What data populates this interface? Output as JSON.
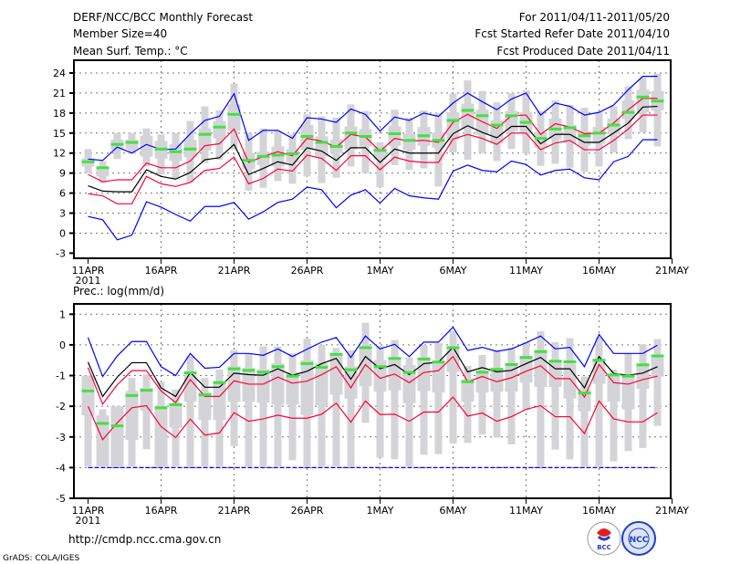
{
  "header": {
    "title": "DERF/NCC/BCC Monthly Forecast",
    "member_size": "Member Size=40",
    "variable": "Mean Surf. Temp.: °C",
    "period": "For 2011/04/11-2011/05/20",
    "started": "Fcst Started Refer Date 2011/04/10",
    "produced": "Fcst Produced Date 2011/04/11"
  },
  "footer": {
    "url": "http://cmdp.ncc.cma.gov.cn",
    "credit": "GrADS: COLA/IGES",
    "logo_bcc": "BCC",
    "logo_ncc": "NCC"
  },
  "colors": {
    "envelope": "#0000ff",
    "spread": "#ff0033",
    "mean": "#000000",
    "obs": "#44e044",
    "box": "#d4d4d8"
  },
  "chart_data": [
    {
      "type": "line",
      "title": "Mean Surf. Temp.: °C",
      "xlabel": "",
      "ylabel": "°C",
      "ylim": [
        -3,
        24
      ],
      "yticks": [
        -3,
        0,
        3,
        6,
        9,
        12,
        15,
        18,
        21,
        24
      ],
      "xticks": [
        {
          "day": 0,
          "label": "11APR",
          "sub": "2011"
        },
        {
          "day": 5,
          "label": "16APR"
        },
        {
          "day": 10,
          "label": "21APR"
        },
        {
          "day": 15,
          "label": "26APR"
        },
        {
          "day": 20,
          "label": "1MAY"
        },
        {
          "day": 25,
          "label": "6MAY"
        },
        {
          "day": 30,
          "label": "11MAY"
        },
        {
          "day": 35,
          "label": "16MAY"
        },
        {
          "day": 40,
          "label": "21MAY"
        }
      ],
      "grid": true,
      "series": [
        {
          "name": "max",
          "color": "#0000ff",
          "values": [
            11.1,
            10.9,
            12.9,
            12.0,
            13.3,
            12.5,
            12.6,
            14.9,
            16.9,
            17.5,
            20.9,
            13.9,
            15.4,
            15.4,
            14.2,
            17.3,
            17.1,
            16.6,
            18.6,
            17.8,
            15.3,
            17.4,
            16.9,
            18.0,
            17.5,
            19.5,
            21.0,
            19.7,
            18.5,
            20.1,
            21.0,
            17.7,
            19.5,
            19.0,
            17.7,
            18.1,
            19.2,
            21.5,
            23.5,
            23.5
          ]
        },
        {
          "name": "upper",
          "color": "#ff0033",
          "values": [
            8.8,
            7.7,
            8.0,
            8.0,
            10.5,
            9.8,
            9.8,
            10.8,
            13.1,
            13.4,
            15.6,
            10.6,
            11.5,
            12.2,
            11.6,
            14.2,
            13.8,
            12.9,
            14.8,
            14.4,
            12.3,
            14.2,
            13.8,
            13.9,
            13.6,
            16.6,
            17.8,
            16.7,
            15.7,
            17.6,
            17.7,
            14.8,
            16.4,
            15.9,
            14.9,
            15.0,
            16.5,
            18.5,
            20.2,
            20.2
          ]
        },
        {
          "name": "mean",
          "color": "#000000",
          "values": [
            7.1,
            6.3,
            6.2,
            6.2,
            9.5,
            8.5,
            8.1,
            9.1,
            11.0,
            11.3,
            13.3,
            8.8,
            9.7,
            10.7,
            10.2,
            12.8,
            12.3,
            10.9,
            12.8,
            12.8,
            10.6,
            12.6,
            12.0,
            12.0,
            12.0,
            14.9,
            16.1,
            15.1,
            14.3,
            16.0,
            16.0,
            13.4,
            14.8,
            14.8,
            13.6,
            13.6,
            15.0,
            16.5,
            18.9,
            19.0
          ]
        },
        {
          "name": "lower",
          "color": "#ff0033",
          "values": [
            5.9,
            5.6,
            4.4,
            4.4,
            8.5,
            7.4,
            7.0,
            7.6,
            9.4,
            9.7,
            11.4,
            7.4,
            8.2,
            9.6,
            9.3,
            11.7,
            11.2,
            9.4,
            11.6,
            11.6,
            9.5,
            11.4,
            10.8,
            10.6,
            10.6,
            14.1,
            14.8,
            14.2,
            13.3,
            15.0,
            15.0,
            12.5,
            13.5,
            13.9,
            12.5,
            12.5,
            13.9,
            15.6,
            17.7,
            17.7
          ]
        },
        {
          "name": "min",
          "color": "#0000ff",
          "values": [
            2.5,
            2.0,
            -1.0,
            -0.3,
            4.7,
            3.9,
            2.8,
            1.8,
            4.0,
            4.0,
            4.6,
            2.1,
            3.2,
            4.6,
            5.1,
            6.9,
            6.5,
            3.8,
            5.7,
            6.5,
            4.5,
            6.7,
            5.6,
            5.3,
            5.1,
            9.3,
            10.2,
            9.4,
            9.2,
            10.8,
            10.3,
            8.7,
            9.4,
            9.6,
            8.3,
            8.0,
            10.7,
            11.5,
            14.0,
            14.0
          ]
        }
      ],
      "obs": [
        10.7,
        9.8,
        13.3,
        13.6,
        null,
        12.6,
        12.2,
        12.6,
        14.8,
        15.9,
        17.8,
        10.9,
        11.5,
        11.7,
        11.9,
        14.5,
        13.6,
        13.0,
        15.0,
        14.5,
        12.4,
        14.9,
        13.9,
        14.6,
        13.9,
        16.9,
        18.4,
        17.6,
        16.2,
        17.6,
        16.6,
        14.2,
        15.6,
        15.8,
        14.6,
        15.0,
        16.2,
        18.1,
        20.4,
        19.8
      ],
      "boxes": [
        [
          9,
          10,
          11.2,
          12.6
        ],
        [
          7.5,
          8.5,
          10,
          10.8
        ],
        [
          11.1,
          12.5,
          14,
          15
        ],
        [
          11.9,
          12.6,
          14,
          15
        ],
        [
          10,
          11.5,
          14.6,
          15.7
        ],
        [
          8.8,
          11.2,
          13.8,
          14.8
        ],
        [
          8.2,
          10.8,
          13.3,
          15
        ],
        [
          7.6,
          11.4,
          14,
          16.8
        ],
        [
          10.5,
          12.4,
          15.7,
          19
        ],
        [
          11,
          14.2,
          16.8,
          18.4
        ],
        [
          12.5,
          15.3,
          19.3,
          22.4
        ],
        [
          6.4,
          9.6,
          12,
          15
        ],
        [
          6.8,
          10.2,
          12.2,
          15.7
        ],
        [
          7.8,
          10,
          13,
          15.3
        ],
        [
          7.4,
          10.6,
          12.6,
          14.8
        ],
        [
          8.5,
          12.5,
          16.2,
          17.8
        ],
        [
          7.5,
          11.5,
          14.5,
          17.5
        ],
        [
          8.3,
          12,
          14,
          17.3
        ],
        [
          10,
          12.5,
          16,
          19.3
        ],
        [
          9,
          13,
          15.6,
          18.3
        ],
        [
          6.9,
          11,
          13,
          13.6
        ],
        [
          10.2,
          13.1,
          16,
          18.5
        ],
        [
          9.5,
          12.5,
          14.9,
          17.3
        ],
        [
          9.7,
          13.1,
          15.9,
          18.4
        ],
        [
          7,
          12.8,
          15.1,
          18
        ],
        [
          12.1,
          14,
          18.1,
          20.9
        ],
        [
          11,
          15.6,
          19.4,
          22.9
        ],
        [
          12,
          14.7,
          18.5,
          21.3
        ],
        [
          10.8,
          13.5,
          16.9,
          19.6
        ],
        [
          12.6,
          15.3,
          18.3,
          21
        ],
        [
          11.9,
          14.9,
          18.1,
          21.4
        ],
        [
          10.1,
          12.8,
          15.1,
          18.3
        ],
        [
          10.4,
          14.1,
          17.2,
          19.9
        ],
        [
          9.8,
          13.5,
          16.2,
          19.2
        ],
        [
          9.2,
          13.1,
          15.3,
          18.8
        ],
        [
          10,
          13.4,
          15.9,
          18.1
        ],
        [
          12.1,
          14.8,
          17.2,
          19
        ],
        [
          14.1,
          17.1,
          19.9,
          22
        ],
        [
          15.1,
          18.1,
          21.5,
          23.3
        ],
        [
          13,
          18.4,
          21.3,
          23.9
        ]
      ]
    },
    {
      "type": "line",
      "title": "Prec.: log(mm/d)",
      "xlabel": "",
      "ylabel": "log(mm/d)",
      "ylim": [
        -5,
        1
      ],
      "yticks": [
        -5,
        -4,
        -3,
        -2,
        -1,
        0,
        1
      ],
      "xticks": [
        {
          "day": 0,
          "label": "11APR",
          "sub": "2011"
        },
        {
          "day": 5,
          "label": "16APR"
        },
        {
          "day": 10,
          "label": "21APR"
        },
        {
          "day": 15,
          "label": "26APR"
        },
        {
          "day": 20,
          "label": "1MAY"
        },
        {
          "day": 25,
          "label": "6MAY"
        },
        {
          "day": 30,
          "label": "11MAY"
        },
        {
          "day": 35,
          "label": "16MAY"
        },
        {
          "day": 40,
          "label": "21MAY"
        }
      ],
      "grid": true,
      "series": [
        {
          "name": "max",
          "color": "#0000ff",
          "values": [
            0.24,
            -1.03,
            -0.36,
            0.11,
            0.11,
            -0.71,
            -1.0,
            -0.28,
            -0.76,
            -0.73,
            -0.28,
            -0.28,
            -0.34,
            -0.13,
            -0.38,
            -0.14,
            0.09,
            0.24,
            -0.41,
            0.29,
            -0.13,
            0.02,
            -0.38,
            0.09,
            0.09,
            0.58,
            -0.18,
            -0.08,
            -0.21,
            -0.13,
            0.07,
            0.29,
            -0.13,
            -0.08,
            -0.71,
            0.34,
            -0.28,
            -0.28,
            -0.28,
            -0.01
          ]
        },
        {
          "name": "upper",
          "color": "#ff0033",
          "values": [
            -0.74,
            -1.93,
            -1.3,
            -0.84,
            -0.84,
            -1.5,
            -1.88,
            -1.13,
            -1.68,
            -1.68,
            -1.17,
            -1.28,
            -1.28,
            -1.05,
            -1.25,
            -1.18,
            -0.97,
            -0.71,
            -1.4,
            -0.64,
            -1.09,
            -0.95,
            -1.23,
            -0.9,
            -0.84,
            -0.38,
            -1.2,
            -1.03,
            -1.2,
            -1.07,
            -0.86,
            -0.68,
            -1.1,
            -1.1,
            -1.7,
            -0.64,
            -1.23,
            -1.28,
            -1.13,
            -1.02
          ]
        },
        {
          "name": "mean",
          "color": "#000000",
          "values": [
            -0.56,
            -1.68,
            -1.05,
            -0.58,
            -0.58,
            -1.4,
            -1.68,
            -0.9,
            -1.38,
            -1.38,
            -0.92,
            -0.97,
            -0.99,
            -0.78,
            -0.99,
            -0.86,
            -0.61,
            -0.44,
            -1.12,
            -0.38,
            -0.78,
            -0.64,
            -0.97,
            -0.61,
            -0.56,
            -0.08,
            -0.88,
            -0.74,
            -0.88,
            -0.83,
            -0.61,
            -0.41,
            -0.78,
            -0.78,
            -1.4,
            -0.38,
            -0.93,
            -0.99,
            -0.92,
            -0.71
          ]
        },
        {
          "name": "lower",
          "color": "#ff0033",
          "values": [
            -2.0,
            -3.09,
            -2.54,
            -2.05,
            -1.98,
            -2.66,
            -3.02,
            -2.42,
            -2.94,
            -2.87,
            -2.21,
            -2.49,
            -2.41,
            -2.29,
            -2.39,
            -2.39,
            -2.26,
            -1.9,
            -2.52,
            -1.83,
            -2.27,
            -2.26,
            -2.49,
            -2.19,
            -2.19,
            -1.7,
            -2.32,
            -2.22,
            -2.49,
            -2.34,
            -2.1,
            -1.98,
            -2.34,
            -2.34,
            -2.89,
            -1.83,
            -2.41,
            -2.51,
            -2.51,
            -2.21
          ]
        },
        {
          "name": "min",
          "color": "#0000ff",
          "dashed": true,
          "values": [
            -4,
            -4,
            -4,
            -4,
            -4,
            -4,
            -4,
            -4,
            -4,
            -4,
            -4,
            -4,
            -4,
            -4,
            -4,
            -4,
            -4,
            -4,
            -4,
            -4,
            -4,
            -4,
            -4,
            -4,
            -4,
            -4,
            -4,
            -4,
            -4,
            -4,
            -4,
            -4,
            -4,
            -4,
            -4,
            -4,
            -4,
            -4,
            -4,
            -4
          ]
        }
      ],
      "obs": [
        -1.5,
        -2.56,
        -2.64,
        -1.65,
        -1.48,
        -2.05,
        -1.95,
        -0.91,
        -1.63,
        -1.23,
        -0.78,
        -0.83,
        -0.89,
        -0.71,
        -1.02,
        -0.61,
        -0.73,
        -0.31,
        -0.81,
        -0.09,
        -0.71,
        -0.44,
        -0.9,
        -0.46,
        -0.56,
        -0.09,
        -1.2,
        -0.89,
        -0.8,
        -0.64,
        -0.41,
        -0.22,
        -0.53,
        -0.55,
        -1.57,
        -0.5,
        -0.98,
        -1.02,
        -0.65,
        -0.36
      ],
      "boxes": [
        [
          -3.96,
          -2.3,
          -1.0,
          -1.0
        ],
        [
          -3.96,
          -3.96,
          -2.3,
          -2.1
        ],
        [
          -3.96,
          -3.96,
          -2.0,
          -2.0
        ],
        [
          -3.96,
          -3.1,
          -1.5,
          -1.08
        ],
        [
          -3.4,
          -2.15,
          -1.4,
          -0.96
        ],
        [
          -3.96,
          -3.96,
          -2.0,
          -1.2
        ],
        [
          -3.96,
          -2.7,
          -1.9,
          -1.45
        ],
        [
          -3.96,
          -1.85,
          -0.9,
          -0.35
        ],
        [
          -3.96,
          -2.45,
          -1.55,
          -1.08
        ],
        [
          -3.96,
          -2.45,
          -1.2,
          -0.8
        ],
        [
          -3.3,
          -1.85,
          -0.7,
          -0.17
        ],
        [
          -3.96,
          -1.85,
          -0.75,
          -0.28
        ],
        [
          -3.96,
          -1.88,
          -0.8,
          -0.05
        ],
        [
          -3.96,
          -1.95,
          -0.6,
          -0.05
        ],
        [
          -3.76,
          -1.95,
          -0.9,
          -0.28
        ],
        [
          -3.96,
          -2.28,
          -0.5,
          0.2
        ],
        [
          -3.96,
          -1.97,
          -0.6,
          0.0
        ],
        [
          -3.96,
          -1.62,
          -0.3,
          -0.1
        ],
        [
          -3.96,
          -1.75,
          -0.7,
          -0.17
        ],
        [
          -2.54,
          -1.35,
          -0.1,
          0.72
        ],
        [
          -3.68,
          -1.52,
          -0.5,
          -0.03
        ],
        [
          -3.73,
          -1.48,
          -0.46,
          0.16
        ],
        [
          -3.96,
          -1.9,
          -0.66,
          -0.41
        ],
        [
          -3.58,
          -1.5,
          -0.41,
          0.0
        ],
        [
          -3.56,
          -1.55,
          -0.51,
          0.06
        ],
        [
          -3.22,
          -0.88,
          -0.06,
          0.45
        ],
        [
          -3.19,
          -1.85,
          -1.13,
          -0.69
        ],
        [
          -2.92,
          -1.55,
          -0.86,
          -0.33
        ],
        [
          -3.02,
          -1.53,
          -0.74,
          -0.18
        ],
        [
          -3.24,
          -1.53,
          -0.61,
          -0.08
        ],
        [
          -2.13,
          -1.23,
          -0.36,
          0.09
        ],
        [
          -3.96,
          -1.37,
          -0.16,
          0.45
        ],
        [
          -3.41,
          -1.37,
          -0.56,
          0.09
        ],
        [
          -3.73,
          -1.75,
          -0.61,
          0.22
        ],
        [
          -3.96,
          -2.16,
          -1.45,
          -1.03
        ],
        [
          -3.96,
          -1.27,
          -0.46,
          0.24
        ],
        [
          -3.8,
          -1.85,
          -0.95,
          -0.81
        ],
        [
          -3.46,
          -2.1,
          -0.95,
          -0.28
        ],
        [
          -3.36,
          -1.43,
          -0.66,
          0.02
        ],
        [
          -2.64,
          -1.03,
          -0.41,
          0.19
        ]
      ]
    }
  ]
}
